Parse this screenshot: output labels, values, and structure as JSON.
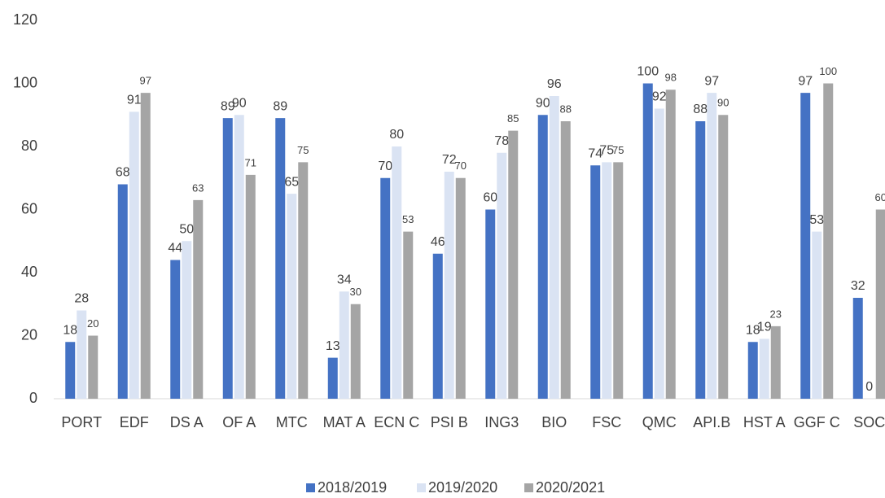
{
  "chart_data": {
    "type": "bar",
    "categories": [
      "PORT",
      "EDF",
      "DS A",
      "OF A",
      "MTC",
      "MAT A",
      "ECN C",
      "PSI B",
      "ING3",
      "BIO",
      "FSC",
      "QMC",
      "API.B",
      "HST A",
      "GGF C",
      "SOC"
    ],
    "series": [
      {
        "name": "2018/2019",
        "color": "#4472c4",
        "values": [
          18,
          68,
          44,
          89,
          89,
          13,
          70,
          46,
          60,
          90,
          74,
          100,
          88,
          18,
          97,
          32
        ]
      },
      {
        "name": "2019/2020",
        "color": "#dae3f3",
        "values": [
          28,
          91,
          50,
          90,
          65,
          34,
          80,
          72,
          78,
          96,
          75,
          92,
          97,
          19,
          53,
          0
        ]
      },
      {
        "name": "2020/2021",
        "color": "#a5a5a5",
        "values": [
          20,
          97,
          63,
          71,
          75,
          30,
          53,
          70,
          85,
          88,
          75,
          98,
          90,
          23,
          100,
          60
        ]
      }
    ],
    "ylim": [
      0,
      120
    ],
    "yticks": [
      0,
      20,
      40,
      60,
      80,
      100,
      120
    ],
    "grid": false,
    "legend": "bottom"
  }
}
